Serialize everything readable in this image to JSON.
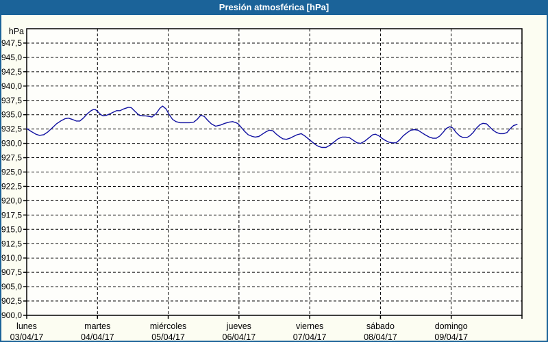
{
  "window": {
    "title": "Presión atmosférica [hPa]",
    "colors": {
      "title_bar": "#1B6399",
      "title_text": "#FFFFFF",
      "window_border": "#1B6399",
      "window_background": "#FCFDF2",
      "plot_background": "#FEFEFB",
      "frame": "#000000",
      "gridline": "#000000",
      "line": "#1010A0"
    }
  },
  "chart_data": {
    "type": "line",
    "title": "Presión atmosférica [hPa]",
    "y_unit_label": "hPa",
    "ylim": [
      900,
      950
    ],
    "ytick_step": 2.5,
    "ytick_labels": [
      "947,5",
      "945,0",
      "942,5",
      "940,0",
      "937,5",
      "935,0",
      "932,5",
      "930,0",
      "927,5",
      "925,0",
      "922,5",
      "920,0",
      "917,5",
      "915,0",
      "912,5",
      "910,0",
      "907,5",
      "905,0",
      "902,5",
      "900,0"
    ],
    "grid": "dashed",
    "legend": "none",
    "x_days": [
      {
        "name": "lunes",
        "date": "03/04/17"
      },
      {
        "name": "martes",
        "date": "04/04/17"
      },
      {
        "name": "miércoles",
        "date": "05/04/17"
      },
      {
        "name": "jueves",
        "date": "06/04/17"
      },
      {
        "name": "viernes",
        "date": "07/04/17"
      },
      {
        "name": "sábado",
        "date": "08/04/17"
      },
      {
        "name": "domingo",
        "date": "09/04/17"
      }
    ],
    "x_range_days": [
      0,
      7
    ],
    "series": [
      {
        "name": "Presión atmosférica",
        "x_unit": "days_since_2017-04-03",
        "y_unit": "hPa",
        "points": [
          [
            0.0,
            932.6
          ],
          [
            0.06,
            932.1
          ],
          [
            0.13,
            931.6
          ],
          [
            0.18,
            931.4
          ],
          [
            0.24,
            931.5
          ],
          [
            0.3,
            932.0
          ],
          [
            0.36,
            932.7
          ],
          [
            0.42,
            933.4
          ],
          [
            0.48,
            933.9
          ],
          [
            0.54,
            934.3
          ],
          [
            0.59,
            934.4
          ],
          [
            0.64,
            934.2
          ],
          [
            0.7,
            933.9
          ],
          [
            0.75,
            933.9
          ],
          [
            0.8,
            934.4
          ],
          [
            0.86,
            935.2
          ],
          [
            0.91,
            935.7
          ],
          [
            0.94,
            935.9
          ],
          [
            0.97,
            935.9
          ],
          [
            1.0,
            935.6
          ],
          [
            1.05,
            935.0
          ],
          [
            1.08,
            934.8
          ],
          [
            1.13,
            934.9
          ],
          [
            1.2,
            935.3
          ],
          [
            1.27,
            935.7
          ],
          [
            1.32,
            935.7
          ],
          [
            1.37,
            936.0
          ],
          [
            1.44,
            936.3
          ],
          [
            1.48,
            936.2
          ],
          [
            1.53,
            935.6
          ],
          [
            1.59,
            934.9
          ],
          [
            1.64,
            934.8
          ],
          [
            1.68,
            934.8
          ],
          [
            1.73,
            934.7
          ],
          [
            1.77,
            934.6
          ],
          [
            1.83,
            935.2
          ],
          [
            1.88,
            936.1
          ],
          [
            1.92,
            936.5
          ],
          [
            1.97,
            936.0
          ],
          [
            2.01,
            935.1
          ],
          [
            2.06,
            934.2
          ],
          [
            2.11,
            933.8
          ],
          [
            2.17,
            933.6
          ],
          [
            2.24,
            933.6
          ],
          [
            2.3,
            933.6
          ],
          [
            2.36,
            933.7
          ],
          [
            2.41,
            934.2
          ],
          [
            2.46,
            934.9
          ],
          [
            2.51,
            934.7
          ],
          [
            2.56,
            934.0
          ],
          [
            2.61,
            933.4
          ],
          [
            2.67,
            933.0
          ],
          [
            2.74,
            933.2
          ],
          [
            2.8,
            933.5
          ],
          [
            2.86,
            933.7
          ],
          [
            2.91,
            933.8
          ],
          [
            2.96,
            933.6
          ],
          [
            2.99,
            933.4
          ],
          [
            3.03,
            932.8
          ],
          [
            3.08,
            932.1
          ],
          [
            3.13,
            931.5
          ],
          [
            3.19,
            931.2
          ],
          [
            3.23,
            931.1
          ],
          [
            3.28,
            931.2
          ],
          [
            3.33,
            931.6
          ],
          [
            3.38,
            932.0
          ],
          [
            3.43,
            932.3
          ],
          [
            3.48,
            932.2
          ],
          [
            3.52,
            931.7
          ],
          [
            3.57,
            931.2
          ],
          [
            3.62,
            930.8
          ],
          [
            3.67,
            930.7
          ],
          [
            3.72,
            930.9
          ],
          [
            3.77,
            931.2
          ],
          [
            3.82,
            931.5
          ],
          [
            3.88,
            931.7
          ],
          [
            3.93,
            931.3
          ],
          [
            3.98,
            930.8
          ],
          [
            4.03,
            930.3
          ],
          [
            4.08,
            929.8
          ],
          [
            4.12,
            929.5
          ],
          [
            4.17,
            929.3
          ],
          [
            4.23,
            929.3
          ],
          [
            4.29,
            929.7
          ],
          [
            4.35,
            930.3
          ],
          [
            4.4,
            930.8
          ],
          [
            4.46,
            931.1
          ],
          [
            4.51,
            931.1
          ],
          [
            4.56,
            931.0
          ],
          [
            4.62,
            930.5
          ],
          [
            4.67,
            930.1
          ],
          [
            4.72,
            930.0
          ],
          [
            4.78,
            930.4
          ],
          [
            4.84,
            931.0
          ],
          [
            4.89,
            931.5
          ],
          [
            4.93,
            931.6
          ],
          [
            4.98,
            931.3
          ],
          [
            5.02,
            930.9
          ],
          [
            5.07,
            930.5
          ],
          [
            5.12,
            930.2
          ],
          [
            5.17,
            930.1
          ],
          [
            5.22,
            930.1
          ],
          [
            5.27,
            930.6
          ],
          [
            5.32,
            931.3
          ],
          [
            5.38,
            931.9
          ],
          [
            5.43,
            932.3
          ],
          [
            5.48,
            932.4
          ],
          [
            5.53,
            932.3
          ],
          [
            5.58,
            931.9
          ],
          [
            5.63,
            931.5
          ],
          [
            5.69,
            931.1
          ],
          [
            5.74,
            930.9
          ],
          [
            5.79,
            930.9
          ],
          [
            5.84,
            931.3
          ],
          [
            5.89,
            932.0
          ],
          [
            5.93,
            932.6
          ],
          [
            5.98,
            932.9
          ],
          [
            6.02,
            932.7
          ],
          [
            6.07,
            931.9
          ],
          [
            6.12,
            931.3
          ],
          [
            6.17,
            931.0
          ],
          [
            6.22,
            931.0
          ],
          [
            6.26,
            931.3
          ],
          [
            6.31,
            931.9
          ],
          [
            6.36,
            932.7
          ],
          [
            6.41,
            933.3
          ],
          [
            6.45,
            933.5
          ],
          [
            6.5,
            933.4
          ],
          [
            6.54,
            932.9
          ],
          [
            6.59,
            932.3
          ],
          [
            6.64,
            931.9
          ],
          [
            6.69,
            931.7
          ],
          [
            6.74,
            931.7
          ],
          [
            6.79,
            931.9
          ],
          [
            6.83,
            932.5
          ],
          [
            6.88,
            933.1
          ],
          [
            6.93,
            933.3
          ]
        ]
      }
    ]
  }
}
